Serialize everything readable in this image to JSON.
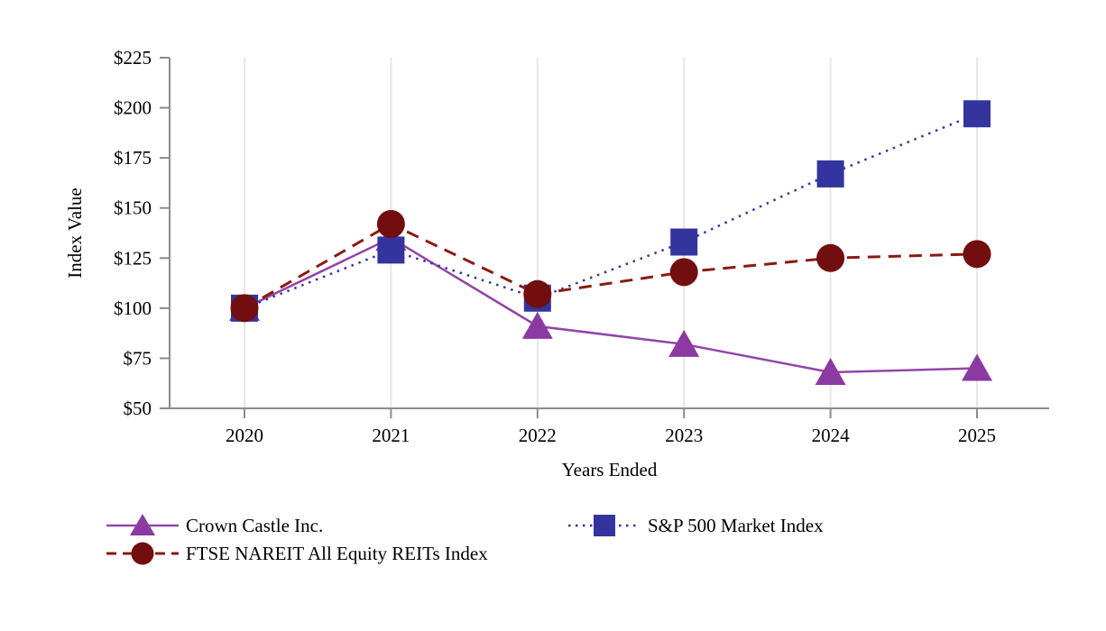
{
  "figure": {
    "background": "#FFFFFF"
  },
  "chart_data": {
    "type": "line",
    "title": "",
    "xlabel": "Years Ended",
    "ylabel": "Index Value",
    "categories": [
      "2020",
      "2021",
      "2022",
      "2023",
      "2024",
      "2025"
    ],
    "ylim": [
      50,
      225
    ],
    "yticks": [
      {
        "value": 50,
        "label": "$50"
      },
      {
        "value": 75,
        "label": "$75"
      },
      {
        "value": 100,
        "label": "$100"
      },
      {
        "value": 125,
        "label": "$125"
      },
      {
        "value": 150,
        "label": "$150"
      },
      {
        "value": 175,
        "label": "$175"
      },
      {
        "value": 200,
        "label": "$200"
      },
      {
        "value": 225,
        "label": "$225"
      }
    ],
    "grid": "vertical-only",
    "legend_position": "bottom",
    "axis_color": "#8C8C8C",
    "gridline_color": "#E7E7E7",
    "text_color": "#000000",
    "series": [
      {
        "name": "Crown Castle Inc.",
        "marker": "triangle",
        "line_style": "solid",
        "line_color": "#9345A8",
        "marker_color": "#8B3AA2",
        "values": [
          100,
          135,
          91,
          82,
          68,
          70
        ]
      },
      {
        "name": "S&P 500 Market Index",
        "marker": "square",
        "line_style": "dotted",
        "line_color": "#34349E",
        "marker_color": "#34349E",
        "values": [
          100,
          129,
          105,
          133,
          167,
          197
        ]
      },
      {
        "name": "FTSE NAREIT All Equity REITs Index",
        "marker": "circle",
        "line_style": "dashed",
        "line_color": "#8B1A13",
        "marker_color": "#720D10",
        "values": [
          100,
          142,
          107,
          118,
          125,
          127
        ]
      }
    ]
  },
  "legend": {
    "items": [
      {
        "label": "Crown Castle Inc.",
        "series_index": 0
      },
      {
        "label": "FTSE NAREIT All Equity REITs Index",
        "series_index": 2
      },
      {
        "label": "S&P 500 Market Index",
        "series_index": 1
      }
    ]
  }
}
